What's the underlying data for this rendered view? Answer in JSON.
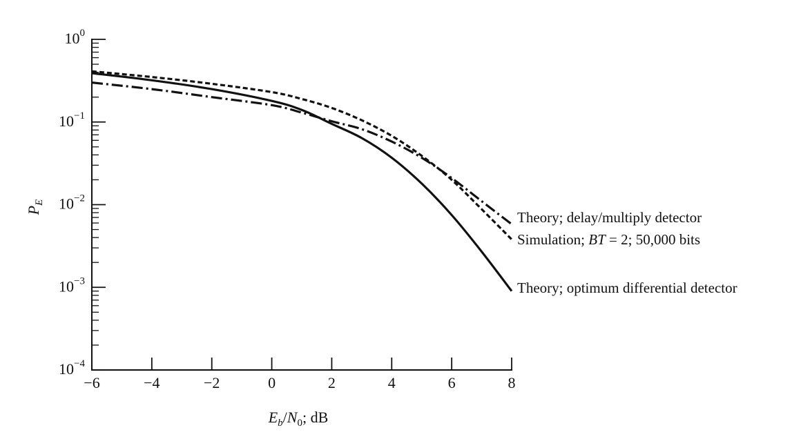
{
  "chart_data": {
    "type": "line",
    "title": "",
    "xlabel": "Eb/N0; dB",
    "xlabel_parts": {
      "E": "E",
      "b": "b",
      "slash": "/",
      "N": "N",
      "zero": "0",
      "rest": "; dB"
    },
    "ylabel": "PE",
    "ylabel_parts": {
      "P": "P",
      "E": "E"
    },
    "xlim": [
      -6,
      8
    ],
    "ylim": [
      0.0001,
      1
    ],
    "yscale": "log",
    "grid": false,
    "legend": "labels at line ends (right)",
    "x_ticks": [
      {
        "value": -6,
        "label": "−6"
      },
      {
        "value": -4,
        "label": "−4"
      },
      {
        "value": -2,
        "label": "−2"
      },
      {
        "value": 0,
        "label": "0"
      },
      {
        "value": 2,
        "label": "2"
      },
      {
        "value": 4,
        "label": "4"
      },
      {
        "value": 6,
        "label": "6"
      },
      {
        "value": 8,
        "label": "8"
      }
    ],
    "y_ticks": [
      {
        "value": 1,
        "base": "10",
        "exp": "0"
      },
      {
        "value": 0.1,
        "base": "10",
        "exp": "−1"
      },
      {
        "value": 0.01,
        "base": "10",
        "exp": "−2"
      },
      {
        "value": 0.001,
        "base": "10",
        "exp": "−3"
      },
      {
        "value": 0.0001,
        "base": "10",
        "exp": "−4"
      }
    ],
    "series": [
      {
        "name": "Theory; delay/multiply detector",
        "style": "dashdot",
        "x": [
          -6,
          -4,
          -2,
          0,
          1,
          2,
          3,
          4,
          5,
          6,
          7,
          8
        ],
        "y": [
          0.3,
          0.25,
          0.2,
          0.16,
          0.13,
          0.102,
          0.082,
          0.058,
          0.037,
          0.021,
          0.011,
          0.0058
        ]
      },
      {
        "name": "Simulation; BT = 2; 50,000 bits",
        "name_parts": {
          "pre": "Simulation; ",
          "bt": "BT",
          "post": " = 2; 50,000 bits"
        },
        "style": "dashed",
        "x": [
          -6,
          -4,
          -2,
          0,
          1,
          2,
          3,
          4,
          5,
          6,
          7,
          8
        ],
        "y": [
          0.41,
          0.35,
          0.29,
          0.23,
          0.19,
          0.148,
          0.105,
          0.068,
          0.039,
          0.02,
          0.0088,
          0.0038
        ]
      },
      {
        "name": "Theory; optimum differential detector",
        "style": "solid",
        "x": [
          -6,
          -4,
          -2,
          0,
          1,
          2,
          3,
          4,
          5,
          6,
          7,
          8
        ],
        "y": [
          0.39,
          0.32,
          0.25,
          0.18,
          0.14,
          0.095,
          0.064,
          0.037,
          0.018,
          0.0075,
          0.0027,
          0.0009
        ]
      }
    ]
  }
}
